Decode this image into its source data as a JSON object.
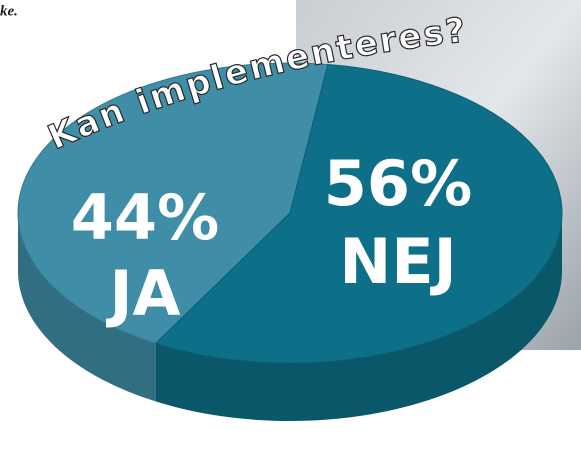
{
  "chart_data": {
    "type": "pie",
    "title": "Kan implementeres?",
    "annotation": "ke.",
    "categories": [
      "JA",
      "NEJ"
    ],
    "values": [
      44,
      56
    ],
    "value_labels": [
      "44%",
      "56%"
    ],
    "colors": [
      "#3f8da6",
      "#0d6f88"
    ]
  }
}
